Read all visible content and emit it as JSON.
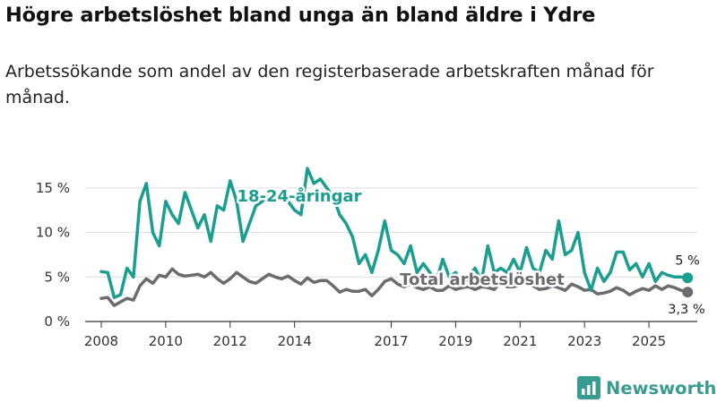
{
  "header": {
    "title": "Högre arbetslöshet bland unga än bland äldre i Ydre",
    "subtitle": "Arbetssökande som andel av den registerbaserade arbetskraften månad för månad."
  },
  "brand": {
    "name": "Newsworthy",
    "icon": "newsworthy-bar-chart-icon",
    "color": "#3a9c90"
  },
  "chart_data": {
    "type": "line",
    "title": "Högre arbetslöshet bland unga än bland äldre i Ydre",
    "subtitle": "Arbetssökande som andel av den registerbaserade arbetskraften månad för månad.",
    "xlabel": "",
    "ylabel": "",
    "xlim": [
      2007.5,
      2026.5
    ],
    "ylim": [
      0,
      17
    ],
    "grid": true,
    "x_ticks": [
      2008,
      2010,
      2012,
      2014,
      2017,
      2019,
      2021,
      2023,
      2025
    ],
    "x_tick_labels": [
      "2008",
      "2010",
      "2012",
      "2014",
      "2017",
      "2019",
      "2021",
      "2023",
      "2025"
    ],
    "y_ticks": [
      0,
      5,
      10,
      15
    ],
    "y_tick_labels": [
      "0 %",
      "5 %",
      "10 %",
      "15 %"
    ],
    "series": [
      {
        "name": "18-24-åringar",
        "color": "#1a9e8f",
        "last_label": "5 %",
        "x": [
          2008.0,
          2008.2,
          2008.4,
          2008.6,
          2008.8,
          2009.0,
          2009.2,
          2009.4,
          2009.6,
          2009.8,
          2010.0,
          2010.2,
          2010.4,
          2010.6,
          2010.8,
          2011.0,
          2011.2,
          2011.4,
          2011.6,
          2011.8,
          2012.0,
          2012.2,
          2012.4,
          2012.6,
          2012.8,
          2013.0,
          2013.2,
          2013.4,
          2013.6,
          2013.8,
          2014.0,
          2014.2,
          2014.4,
          2014.6,
          2014.8,
          2015.0,
          2015.2,
          2015.4,
          2015.6,
          2015.8,
          2016.0,
          2016.2,
          2016.4,
          2016.6,
          2016.8,
          2017.0,
          2017.2,
          2017.4,
          2017.6,
          2017.8,
          2018.0,
          2018.2,
          2018.4,
          2018.6,
          2018.8,
          2019.0,
          2019.2,
          2019.4,
          2019.6,
          2019.8,
          2020.0,
          2020.2,
          2020.4,
          2020.6,
          2020.8,
          2021.0,
          2021.2,
          2021.4,
          2021.6,
          2021.8,
          2022.0,
          2022.2,
          2022.4,
          2022.6,
          2022.8,
          2023.0,
          2023.2,
          2023.4,
          2023.6,
          2023.8,
          2024.0,
          2024.2,
          2024.4,
          2024.6,
          2024.8,
          2025.0,
          2025.2,
          2025.4,
          2025.6,
          2025.8,
          2026.0,
          2026.2
        ],
        "values": [
          5.6,
          5.5,
          2.7,
          3.0,
          6.0,
          5.0,
          13.5,
          15.5,
          10.0,
          8.5,
          13.5,
          12.0,
          11.0,
          14.5,
          12.5,
          10.5,
          12.0,
          9.0,
          13.0,
          12.5,
          15.8,
          13.5,
          9.0,
          11.0,
          13.0,
          13.5,
          14.5,
          14.0,
          14.5,
          13.5,
          12.5,
          12.0,
          17.2,
          15.5,
          16.0,
          15.0,
          14.0,
          12.0,
          11.0,
          9.5,
          6.5,
          7.5,
          5.5,
          8.0,
          11.3,
          8.0,
          7.5,
          6.5,
          8.5,
          5.5,
          6.5,
          5.5,
          4.5,
          7.0,
          5.0,
          5.5,
          4.0,
          5.0,
          6.0,
          4.5,
          8.5,
          5.5,
          6.0,
          5.5,
          7.0,
          5.5,
          8.3,
          6.0,
          5.5,
          8.0,
          7.0,
          11.3,
          7.5,
          8.0,
          10.0,
          5.5,
          3.5,
          6.0,
          4.5,
          5.5,
          7.8,
          7.8,
          5.8,
          6.5,
          5.0,
          6.5,
          4.5,
          5.5,
          5.2,
          5.0,
          5.0,
          4.9
        ]
      },
      {
        "name": "Total arbetslöshet",
        "color": "#6e6b70",
        "last_label": "3,3 %",
        "x": [
          2008.0,
          2008.2,
          2008.4,
          2008.6,
          2008.8,
          2009.0,
          2009.2,
          2009.4,
          2009.6,
          2009.8,
          2010.0,
          2010.2,
          2010.4,
          2010.6,
          2010.8,
          2011.0,
          2011.2,
          2011.4,
          2011.6,
          2011.8,
          2012.0,
          2012.2,
          2012.4,
          2012.6,
          2012.8,
          2013.0,
          2013.2,
          2013.4,
          2013.6,
          2013.8,
          2014.0,
          2014.2,
          2014.4,
          2014.6,
          2014.8,
          2015.0,
          2015.2,
          2015.4,
          2015.6,
          2015.8,
          2016.0,
          2016.2,
          2016.4,
          2016.6,
          2016.8,
          2017.0,
          2017.2,
          2017.4,
          2017.6,
          2017.8,
          2018.0,
          2018.2,
          2018.4,
          2018.6,
          2018.8,
          2019.0,
          2019.2,
          2019.4,
          2019.6,
          2019.8,
          2020.0,
          2020.2,
          2020.4,
          2020.6,
          2020.8,
          2021.0,
          2021.2,
          2021.4,
          2021.6,
          2021.8,
          2022.0,
          2022.2,
          2022.4,
          2022.6,
          2022.8,
          2023.0,
          2023.2,
          2023.4,
          2023.6,
          2023.8,
          2024.0,
          2024.2,
          2024.4,
          2024.6,
          2024.8,
          2025.0,
          2025.2,
          2025.4,
          2025.6,
          2025.8,
          2026.0,
          2026.2
        ],
        "values": [
          2.6,
          2.7,
          1.8,
          2.2,
          2.6,
          2.4,
          4.0,
          4.8,
          4.3,
          5.2,
          5.0,
          5.9,
          5.3,
          5.1,
          5.2,
          5.3,
          5.0,
          5.5,
          4.8,
          4.3,
          4.8,
          5.5,
          5.0,
          4.5,
          4.3,
          4.8,
          5.3,
          5.0,
          4.8,
          5.1,
          4.6,
          4.2,
          4.9,
          4.4,
          4.6,
          4.6,
          4.0,
          3.3,
          3.6,
          3.4,
          3.4,
          3.6,
          2.9,
          3.6,
          4.5,
          4.8,
          4.2,
          3.9,
          4.2,
          3.8,
          3.6,
          3.9,
          3.5,
          3.5,
          4.0,
          3.6,
          3.8,
          3.9,
          3.6,
          3.9,
          3.8,
          3.6,
          4.4,
          3.9,
          3.9,
          4.1,
          4.3,
          4.0,
          3.6,
          3.7,
          4.0,
          3.8,
          3.5,
          4.2,
          3.9,
          3.5,
          3.6,
          3.1,
          3.2,
          3.4,
          3.8,
          3.5,
          3.0,
          3.4,
          3.7,
          3.5,
          4.0,
          3.6,
          4.0,
          3.8,
          3.5,
          3.3
        ]
      }
    ]
  }
}
